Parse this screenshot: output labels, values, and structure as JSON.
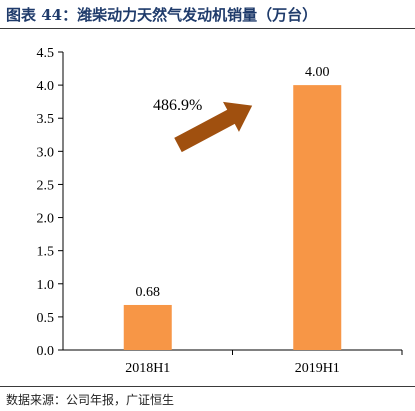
{
  "header": {
    "title": "图表 44：潍柴动力天然气发动机销量（万台）"
  },
  "footer": {
    "source": "数据来源：公司年报，广证恒生"
  },
  "annotation": {
    "growth_label": "486.9%"
  },
  "colors": {
    "bar": "#F79646",
    "arrow": "#A0500F",
    "axis": "#000000",
    "text_title": "#1F3B6B"
  },
  "chart_data": {
    "type": "bar",
    "title": "潍柴动力天然气发动机销量（万台）",
    "categories": [
      "2018H1",
      "2019H1"
    ],
    "values": [
      0.68,
      4.0
    ],
    "value_labels": [
      "0.68",
      "4.00"
    ],
    "ylim": [
      0,
      4.5
    ],
    "yticks": [
      "0.0",
      "0.5",
      "1.0",
      "1.5",
      "2.0",
      "2.5",
      "3.0",
      "3.5",
      "4.0",
      "4.5"
    ],
    "grid": false,
    "legend": "none",
    "annotation": "486.9%"
  }
}
